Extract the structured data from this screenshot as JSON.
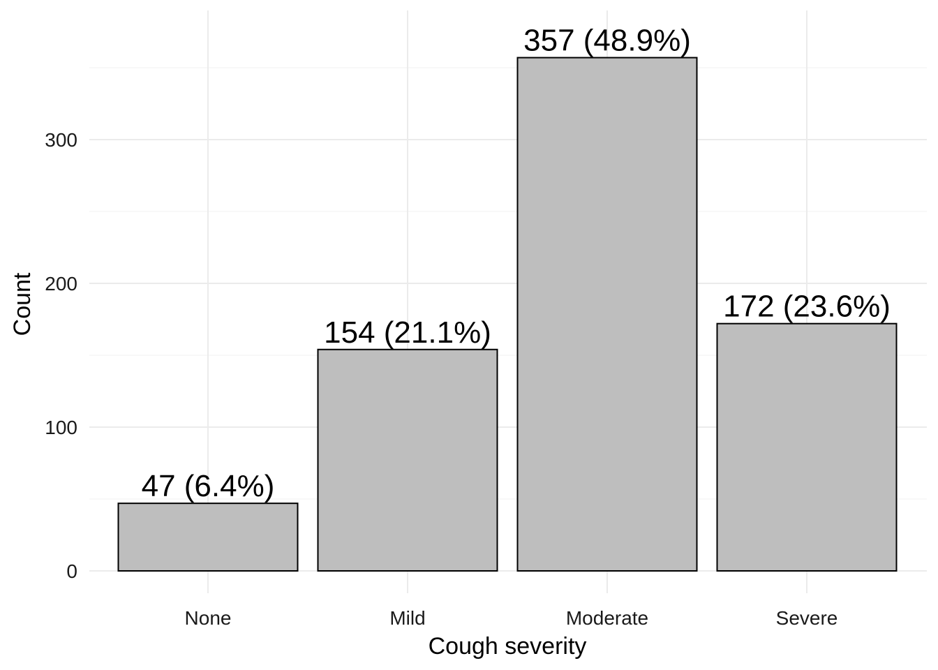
{
  "chart_data": {
    "type": "bar",
    "categories": [
      "None",
      "Mild",
      "Moderate",
      "Severe"
    ],
    "values": [
      47,
      154,
      357,
      172
    ],
    "data_labels": [
      "47 (6.4%)",
      "154 (21.1%)",
      "357 (48.9%)",
      "172 (23.6%)"
    ],
    "title": "",
    "xlabel": "Cough severity",
    "ylabel": "Count",
    "ylim": [
      0,
      375
    ],
    "yticks": [
      0,
      100,
      200,
      300
    ],
    "ytick_labels": [
      "0",
      "100",
      "200",
      "300"
    ],
    "grid": true,
    "bar_fill": "#bebebe",
    "bar_stroke": "#000000"
  }
}
